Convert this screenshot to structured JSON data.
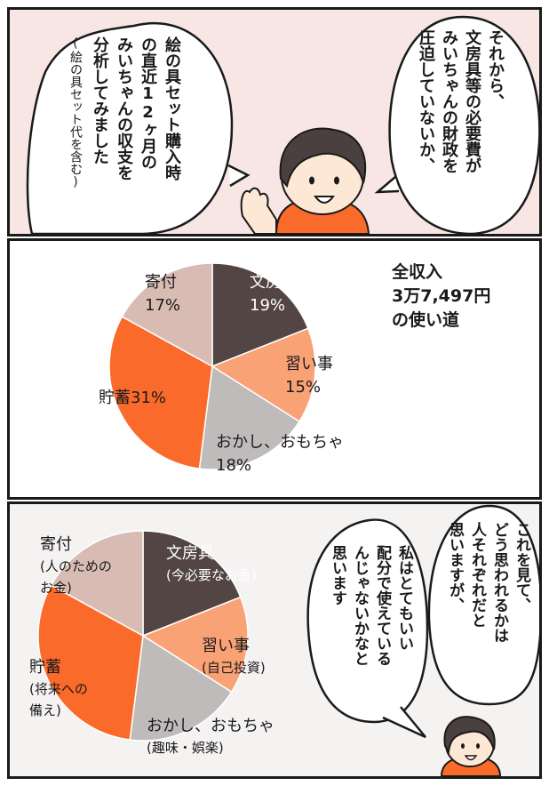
{
  "colors": {
    "stationery": "#524543",
    "lessons": "#f9a276",
    "snacks": "#bfbbbb",
    "savings": "#fa6a2b",
    "donation": "#d8bcb3",
    "panel1_bg": "#f7e6e3",
    "shirt": "#fa6a2b"
  },
  "panel1": {
    "bubble_left": {
      "lines": [
        "絵の具セット購入時",
        "の直近12ヶ月の",
        "みいちゃんの収支を",
        "分析してみました"
      ],
      "note": "(絵の具セット代を含む)"
    },
    "bubble_right": {
      "lines": [
        "それから、",
        "文房具等の必要費が",
        "みいちゃんの財政を",
        "圧迫していないか、"
      ]
    }
  },
  "panel2": {
    "title_lines": [
      "全収入",
      "3万7,497円",
      "の使い道"
    ],
    "labels": {
      "stationery": [
        "文房具",
        "19%"
      ],
      "lessons": [
        "習い事",
        "15%"
      ],
      "snacks": [
        "おかし、おもちゃ",
        "18%"
      ],
      "savings": [
        "貯蓄31%"
      ],
      "donation": [
        "寄付",
        "17%"
      ]
    }
  },
  "panel3": {
    "labels": {
      "stationery": [
        "文房具",
        "(今必要なお金)"
      ],
      "lessons": [
        "習い事",
        "(自己投資)"
      ],
      "snacks": [
        "おかし、おもちゃ",
        "(趣味・娯楽)"
      ],
      "savings": [
        "貯蓄",
        "(将来への",
        "備え)"
      ],
      "donation": [
        "寄付",
        "(人のための",
        "お金)"
      ]
    },
    "bubble_right": {
      "lines": [
        "これを見て、",
        "どう思われるかは",
        "人それぞれだと",
        "思いますが、"
      ]
    },
    "bubble_middle": {
      "lines": [
        "私はとてもいい",
        "配分で使えている",
        "んじゃないかなと",
        "思います"
      ]
    }
  },
  "chart_data": {
    "type": "pie",
    "title": "全収入 3万7,497円 の使い道",
    "categories": [
      "文房具",
      "習い事",
      "おかし、おもちゃ",
      "貯蓄",
      "寄付"
    ],
    "values": [
      19,
      15,
      18,
      31,
      17
    ],
    "unit": "%",
    "colors": [
      "#524543",
      "#f9a276",
      "#bfbbbb",
      "#fa6a2b",
      "#d8bcb3"
    ],
    "legend": "none"
  }
}
